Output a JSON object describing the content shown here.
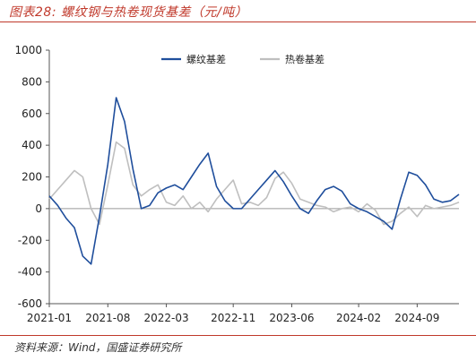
{
  "figure": {
    "title": "图表28:  螺纹钢与热卷现货基差（元/吨）",
    "source": "资料来源：Wind，国盛证券研究所"
  },
  "colors": {
    "accent": "#c0392b",
    "rebar": "#1f4e9c",
    "hrc": "#bfbfbf",
    "axis": "#555555",
    "zero_line": "#999999"
  },
  "chart_data": {
    "type": "line",
    "title": "",
    "xlabel": "",
    "ylabel": "",
    "ylim": [
      -600,
      1000
    ],
    "yticks": [
      -600,
      -400,
      -200,
      0,
      200,
      400,
      600,
      800,
      1000
    ],
    "xticks": [
      "2021-01",
      "2021-08",
      "2022-03",
      "2022-11",
      "2023-06",
      "2024-02",
      "2024-09"
    ],
    "xlim": [
      "2021-01",
      "2025-02"
    ],
    "grid": false,
    "legend_position": "top",
    "series": [
      {
        "name": "螺纹基差",
        "color": "#1f4e9c",
        "x": [
          "2021-01",
          "2021-02",
          "2021-03",
          "2021-04",
          "2021-05",
          "2021-06",
          "2021-07",
          "2021-08",
          "2021-09",
          "2021-10",
          "2021-11",
          "2021-12",
          "2022-01",
          "2022-02",
          "2022-03",
          "2022-04",
          "2022-05",
          "2022-06",
          "2022-07",
          "2022-08",
          "2022-09",
          "2022-10",
          "2022-11",
          "2022-12",
          "2023-01",
          "2023-02",
          "2023-03",
          "2023-04",
          "2023-05",
          "2023-06",
          "2023-07",
          "2023-08",
          "2023-09",
          "2023-10",
          "2023-11",
          "2023-12",
          "2024-01",
          "2024-02",
          "2024-03",
          "2024-04",
          "2024-05",
          "2024-06",
          "2024-07",
          "2024-08",
          "2024-09",
          "2024-10",
          "2024-11",
          "2024-12",
          "2025-01",
          "2025-02"
        ],
        "values": [
          80,
          20,
          -60,
          -120,
          -300,
          -350,
          -50,
          280,
          700,
          550,
          250,
          0,
          20,
          100,
          130,
          150,
          120,
          200,
          280,
          350,
          140,
          50,
          0,
          0,
          60,
          120,
          180,
          240,
          170,
          80,
          0,
          -30,
          50,
          120,
          140,
          110,
          30,
          0,
          -20,
          -50,
          -80,
          -130,
          60,
          230,
          210,
          150,
          60,
          40,
          50,
          90
        ]
      },
      {
        "name": "热卷基差",
        "color": "#bfbfbf",
        "x": [
          "2021-01",
          "2021-02",
          "2021-03",
          "2021-04",
          "2021-05",
          "2021-06",
          "2021-07",
          "2021-08",
          "2021-09",
          "2021-10",
          "2021-11",
          "2021-12",
          "2022-01",
          "2022-02",
          "2022-03",
          "2022-04",
          "2022-05",
          "2022-06",
          "2022-07",
          "2022-08",
          "2022-09",
          "2022-10",
          "2022-11",
          "2022-12",
          "2023-01",
          "2023-02",
          "2023-03",
          "2023-04",
          "2023-05",
          "2023-06",
          "2023-07",
          "2023-08",
          "2023-09",
          "2023-10",
          "2023-11",
          "2023-12",
          "2024-01",
          "2024-02",
          "2024-03",
          "2024-04",
          "2024-05",
          "2024-06",
          "2024-07",
          "2024-08",
          "2024-09",
          "2024-10",
          "2024-11",
          "2024-12",
          "2025-01",
          "2025-02"
        ],
        "values": [
          60,
          120,
          180,
          240,
          200,
          0,
          -100,
          150,
          420,
          380,
          150,
          80,
          120,
          150,
          40,
          20,
          80,
          0,
          40,
          -20,
          60,
          120,
          180,
          30,
          40,
          20,
          70,
          190,
          230,
          160,
          60,
          40,
          20,
          10,
          -20,
          0,
          10,
          -20,
          30,
          -10,
          -100,
          -80,
          -30,
          10,
          -50,
          20,
          0,
          10,
          20,
          40
        ]
      }
    ]
  }
}
